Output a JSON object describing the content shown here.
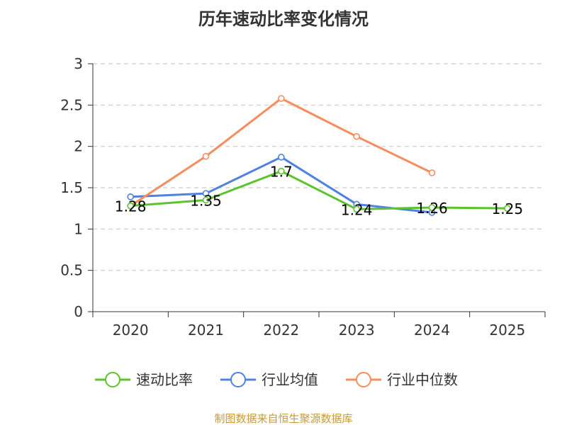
{
  "chart_data": {
    "type": "line",
    "title": "历年速动比率变化情况",
    "categories": [
      "2020",
      "2021",
      "2022",
      "2023",
      "2024",
      "2025"
    ],
    "ylim": [
      0,
      3
    ],
    "yticks": [
      0,
      0.5,
      1,
      1.5,
      2,
      2.5,
      3
    ],
    "ytick_labels": [
      "0",
      "0.5",
      "1",
      "1.5",
      "2",
      "2.5",
      "3"
    ],
    "grid": true,
    "legend_position": "bottom",
    "series": [
      {
        "name": "速动比率",
        "color": "#5bc42a",
        "values": [
          1.28,
          1.35,
          1.7,
          1.24,
          1.26,
          1.25
        ],
        "labels": [
          "1.28",
          "1.35",
          "1.7",
          "1.24",
          "1.26",
          "1.25"
        ]
      },
      {
        "name": "行业均值",
        "color": "#4f81e0",
        "values": [
          1.39,
          1.43,
          1.87,
          1.3,
          1.2,
          null
        ]
      },
      {
        "name": "行业中位数",
        "color": "#f78c5c",
        "values": [
          1.28,
          1.88,
          2.58,
          2.12,
          1.68,
          null
        ]
      }
    ]
  },
  "source": {
    "text": "制图数据来自恒生聚源数据库",
    "color": "#c79a3a"
  }
}
